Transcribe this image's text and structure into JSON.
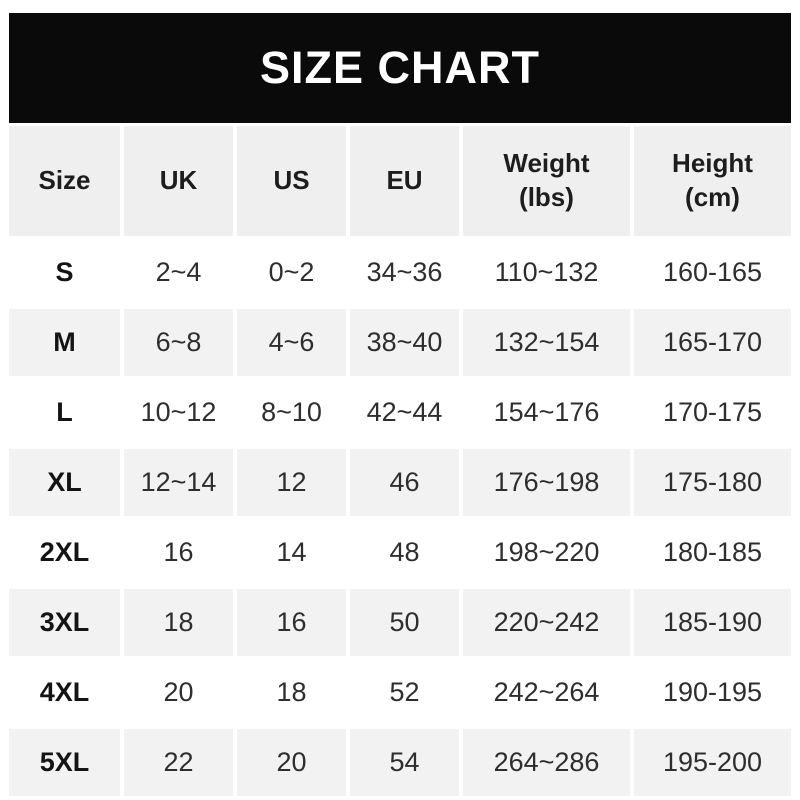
{
  "title": "SIZE CHART",
  "colors": {
    "banner_bg": "#0a0a0a",
    "banner_text": "#ffffff",
    "header_row_bg": "#efefef",
    "alt_row_bg": "#f2f2f2",
    "row_bg": "#ffffff",
    "text": "#2e2e2e",
    "bold_text": "#141414"
  },
  "chart_data": {
    "type": "table",
    "title": "SIZE CHART",
    "columns": [
      {
        "key": "size",
        "label": "Size"
      },
      {
        "key": "uk",
        "label": "UK"
      },
      {
        "key": "us",
        "label": "US"
      },
      {
        "key": "eu",
        "label": "EU"
      },
      {
        "key": "weight",
        "label": "Weight",
        "sub": "(lbs)"
      },
      {
        "key": "height",
        "label": "Height",
        "sub": "(cm)"
      }
    ],
    "rows": [
      {
        "size": "S",
        "uk": "2~4",
        "us": "0~2",
        "eu": "34~36",
        "weight": "110~132",
        "height": "160-165"
      },
      {
        "size": "M",
        "uk": "6~8",
        "us": "4~6",
        "eu": "38~40",
        "weight": "132~154",
        "height": "165-170"
      },
      {
        "size": "L",
        "uk": "10~12",
        "us": "8~10",
        "eu": "42~44",
        "weight": "154~176",
        "height": "170-175"
      },
      {
        "size": "XL",
        "uk": "12~14",
        "us": "12",
        "eu": "46",
        "weight": "176~198",
        "height": "175-180"
      },
      {
        "size": "2XL",
        "uk": "16",
        "us": "14",
        "eu": "48",
        "weight": "198~220",
        "height": "180-185"
      },
      {
        "size": "3XL",
        "uk": "18",
        "us": "16",
        "eu": "50",
        "weight": "220~242",
        "height": "185-190"
      },
      {
        "size": "4XL",
        "uk": "20",
        "us": "18",
        "eu": "52",
        "weight": "242~264",
        "height": "190-195"
      },
      {
        "size": "5XL",
        "uk": "22",
        "us": "20",
        "eu": "54",
        "weight": "264~286",
        "height": "195-200"
      }
    ]
  }
}
